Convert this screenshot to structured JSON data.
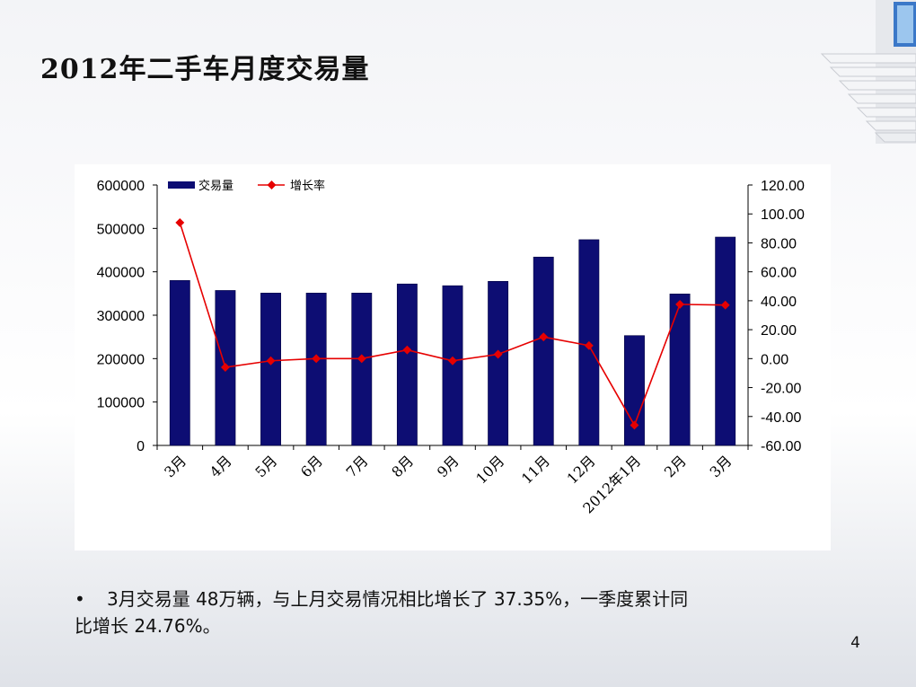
{
  "slide": {
    "title": "2012年二手车月度交易量",
    "bullet_marker": "•",
    "bullet_text_line1": "3月交易量 48万辆，与上月交易情况相比增长了 37.35%，一季度累计同",
    "bullet_text_line2": "比增长 24.76%。",
    "page_number": "4"
  },
  "colors": {
    "bar": "#0d0d73",
    "line": "#e60000",
    "axis": "#000000"
  },
  "chart_data": {
    "type": "bar",
    "categories": [
      "3月",
      "4月",
      "5月",
      "6月",
      "7月",
      "8月",
      "9月",
      "10月",
      "11月",
      "12月",
      "2012年1月",
      "2月",
      "3月"
    ],
    "series": [
      {
        "name": "交易量",
        "type": "bar",
        "axis": "left",
        "values": [
          380000,
          357000,
          351000,
          351000,
          351000,
          372000,
          368000,
          378000,
          434000,
          474000,
          253000,
          349000,
          480000
        ]
      },
      {
        "name": "增长率",
        "type": "line",
        "axis": "right",
        "values": [
          94,
          -6,
          -1.5,
          0,
          0,
          6,
          -1.5,
          3,
          15,
          9,
          -46,
          37.5,
          37
        ]
      }
    ],
    "y_left": {
      "range": [
        0,
        600000
      ],
      "ticks": [
        "0",
        "100000",
        "200000",
        "300000",
        "400000",
        "500000",
        "600000"
      ]
    },
    "y_right": {
      "range": [
        -60,
        120
      ],
      "ticks": [
        "-60.00",
        "-40.00",
        "-20.00",
        "0.00",
        "20.00",
        "40.00",
        "60.00",
        "80.00",
        "100.00",
        "120.00"
      ]
    },
    "legend_position": "top-left",
    "grid": false
  }
}
